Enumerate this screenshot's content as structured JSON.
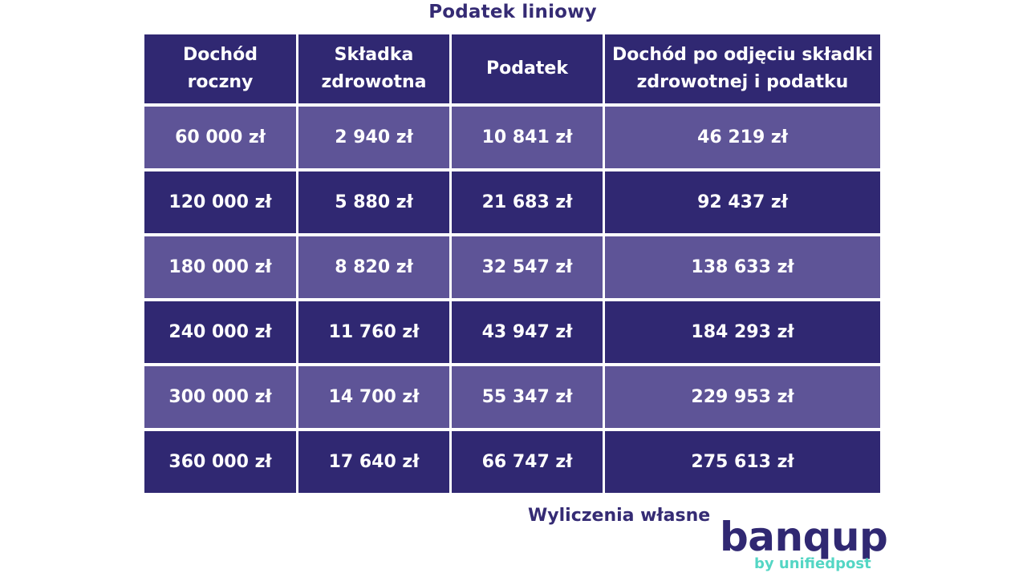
{
  "title": "Podatek liniowy",
  "table": {
    "headers": [
      "Dochód\nroczny",
      "Składka\nzdrowotna",
      "Podatek",
      "Dochód po odjęciu składki\nzdrowotnej i podatku"
    ],
    "rows": [
      [
        "60 000 zł",
        "2 940 zł",
        "10 841 zł",
        "46 219 zł"
      ],
      [
        "120 000 zł",
        "5 880 zł",
        "21 683 zł",
        "92 437 zł"
      ],
      [
        "180 000 zł",
        "8 820 zł",
        "32 547 zł",
        "138 633 zł"
      ],
      [
        "240 000 zł",
        "11 760 zł",
        "43 947 zł",
        "184 293 zł"
      ],
      [
        "300 000 zł",
        "14 700 zł",
        "55 347 zł",
        "229 953 zł"
      ],
      [
        "360 000 zł",
        "17 640 zł",
        "66 747 zł",
        "275 613 zł"
      ]
    ]
  },
  "source_note": "Wyliczenia własne",
  "logo": {
    "name": "banqup",
    "tagline": "by unifiedpost"
  },
  "colors": {
    "header_bg": "#302872",
    "row_light_bg": "#5e5497",
    "row_dark_bg": "#302872",
    "text_dark": "#352b74",
    "accent": "#54d6c4"
  }
}
